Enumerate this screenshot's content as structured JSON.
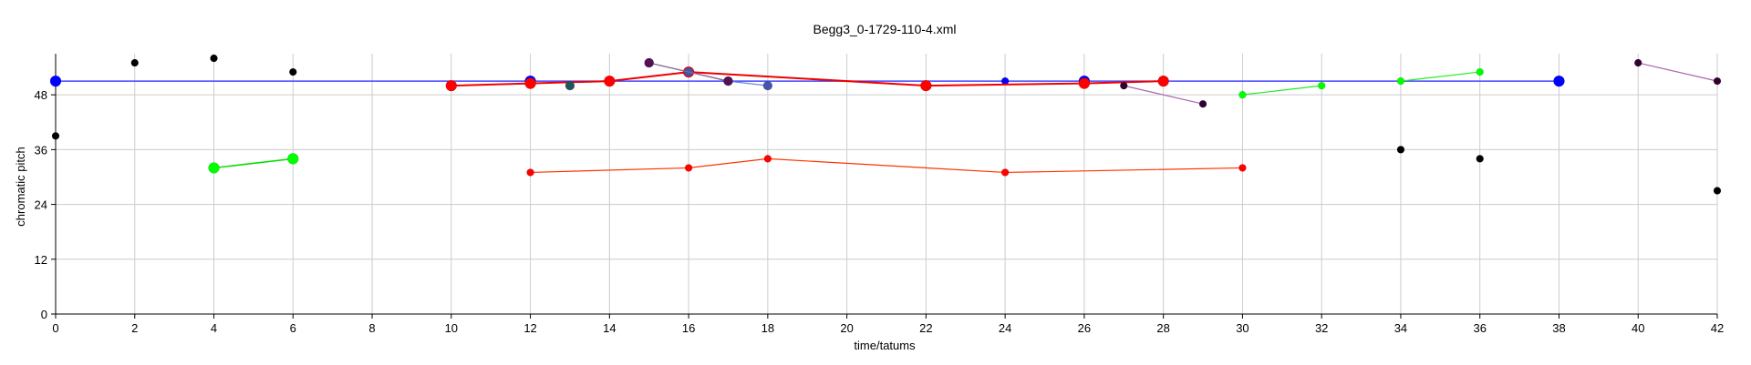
{
  "chart_data": {
    "type": "scatter",
    "title": "Begg3_0-1729-110-4.xml",
    "xlabel": "time/tatums",
    "ylabel": "chromatic pitch",
    "xlim": [
      0,
      42
    ],
    "ylim": [
      0,
      57
    ],
    "grid": true,
    "x_ticks": [
      "0",
      "2",
      "4",
      "6",
      "8",
      "10",
      "12",
      "14",
      "16",
      "18",
      "20",
      "22",
      "24",
      "26",
      "28",
      "30",
      "32",
      "34",
      "36",
      "38",
      "40",
      "42"
    ],
    "y_ticks": [
      "0",
      "12",
      "24",
      "36",
      "48"
    ],
    "series": [
      {
        "color": "#0000ff",
        "line_color": "#4444ff",
        "width": 1.5,
        "marker": 6,
        "points": [
          [
            0,
            51
          ],
          [
            12,
            51
          ],
          [
            26,
            51
          ],
          [
            38,
            51
          ]
        ]
      },
      {
        "color": "#0000ff",
        "line_color": "#4444ff",
        "width": 1.2,
        "marker": 4,
        "points": [
          [
            24,
            51
          ]
        ]
      },
      {
        "color": "#ff0000",
        "line_color": "#ee0000",
        "width": 2,
        "marker": 6,
        "points": [
          [
            10,
            50
          ],
          [
            12,
            50.5
          ],
          [
            14,
            51
          ],
          [
            16,
            53
          ],
          [
            22,
            50
          ],
          [
            26,
            50.5
          ],
          [
            28,
            51
          ]
        ]
      },
      {
        "color": "#ff0000",
        "line_color": "#ff3300",
        "width": 1.2,
        "marker": 4,
        "points": [
          [
            12,
            31
          ],
          [
            16,
            32
          ],
          [
            18,
            34
          ],
          [
            24,
            31
          ],
          [
            30,
            32
          ]
        ]
      },
      {
        "color": "#00ff00",
        "line_color": "#00dd00",
        "width": 1.5,
        "marker": 6,
        "points": [
          [
            4,
            32
          ],
          [
            6,
            34
          ]
        ]
      },
      {
        "color": "#00ff00",
        "line_color": "#22ee22",
        "width": 1.2,
        "marker": 4,
        "points": [
          [
            30,
            48
          ],
          [
            32,
            50
          ]
        ]
      },
      {
        "color": "#00ff00",
        "line_color": "#22ee22",
        "width": 1.2,
        "marker": 4,
        "points": [
          [
            34,
            51
          ],
          [
            36,
            53
          ]
        ]
      },
      {
        "color": "#4455aa",
        "line_color": "#6688dd",
        "width": 1.2,
        "marker": 5,
        "points": [
          [
            15,
            55
          ],
          [
            16,
            53
          ],
          [
            17,
            51
          ],
          [
            18,
            50
          ]
        ]
      },
      {
        "color": "#551155",
        "line_color": "#886688",
        "width": 1.2,
        "marker": 5,
        "points": [
          [
            15,
            55
          ],
          [
            17,
            51
          ]
        ]
      },
      {
        "color": "#330033",
        "line_color": "#aa66aa",
        "width": 1.2,
        "marker": 4,
        "points": [
          [
            27,
            50
          ],
          [
            29,
            46
          ]
        ]
      },
      {
        "color": "#330033",
        "line_color": "#aa66aa",
        "width": 1.2,
        "marker": 4,
        "points": [
          [
            40,
            55
          ],
          [
            42,
            51
          ]
        ]
      },
      {
        "color": "#225555",
        "line_color": "#225555",
        "width": 1,
        "marker": 5,
        "points": [
          [
            13,
            50
          ]
        ]
      },
      {
        "color": "#000000",
        "line_color": "none",
        "width": 0,
        "marker": 4,
        "points": [
          [
            0,
            39
          ],
          [
            2,
            55
          ],
          [
            4,
            56
          ],
          [
            6,
            53
          ],
          [
            34,
            36
          ],
          [
            36,
            34
          ],
          [
            42,
            27
          ]
        ]
      }
    ]
  }
}
